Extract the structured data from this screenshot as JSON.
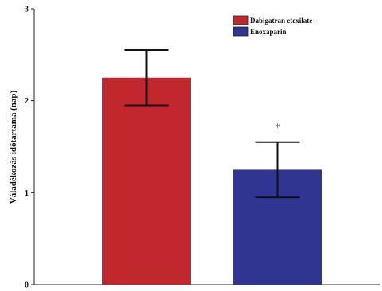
{
  "chart_data": {
    "type": "bar",
    "categories": [
      "Dabigatran etexilate",
      "Enoxaparin"
    ],
    "values": [
      2.25,
      1.25
    ],
    "errors": [
      0.3,
      0.3
    ],
    "colors": [
      "#c1282d",
      "#2f3591"
    ],
    "ylabel": "Váladékozás időtartama (nap)",
    "ylim": [
      0,
      3
    ],
    "yticks": [
      "0",
      "1",
      "2",
      "3"
    ],
    "legend": [
      "Dabigatran etexilate",
      "Enoxaparin"
    ],
    "legend_position": "top-right",
    "annotations": [
      {
        "category": "Enoxaparin",
        "text": "*"
      }
    ],
    "grid": false
  }
}
